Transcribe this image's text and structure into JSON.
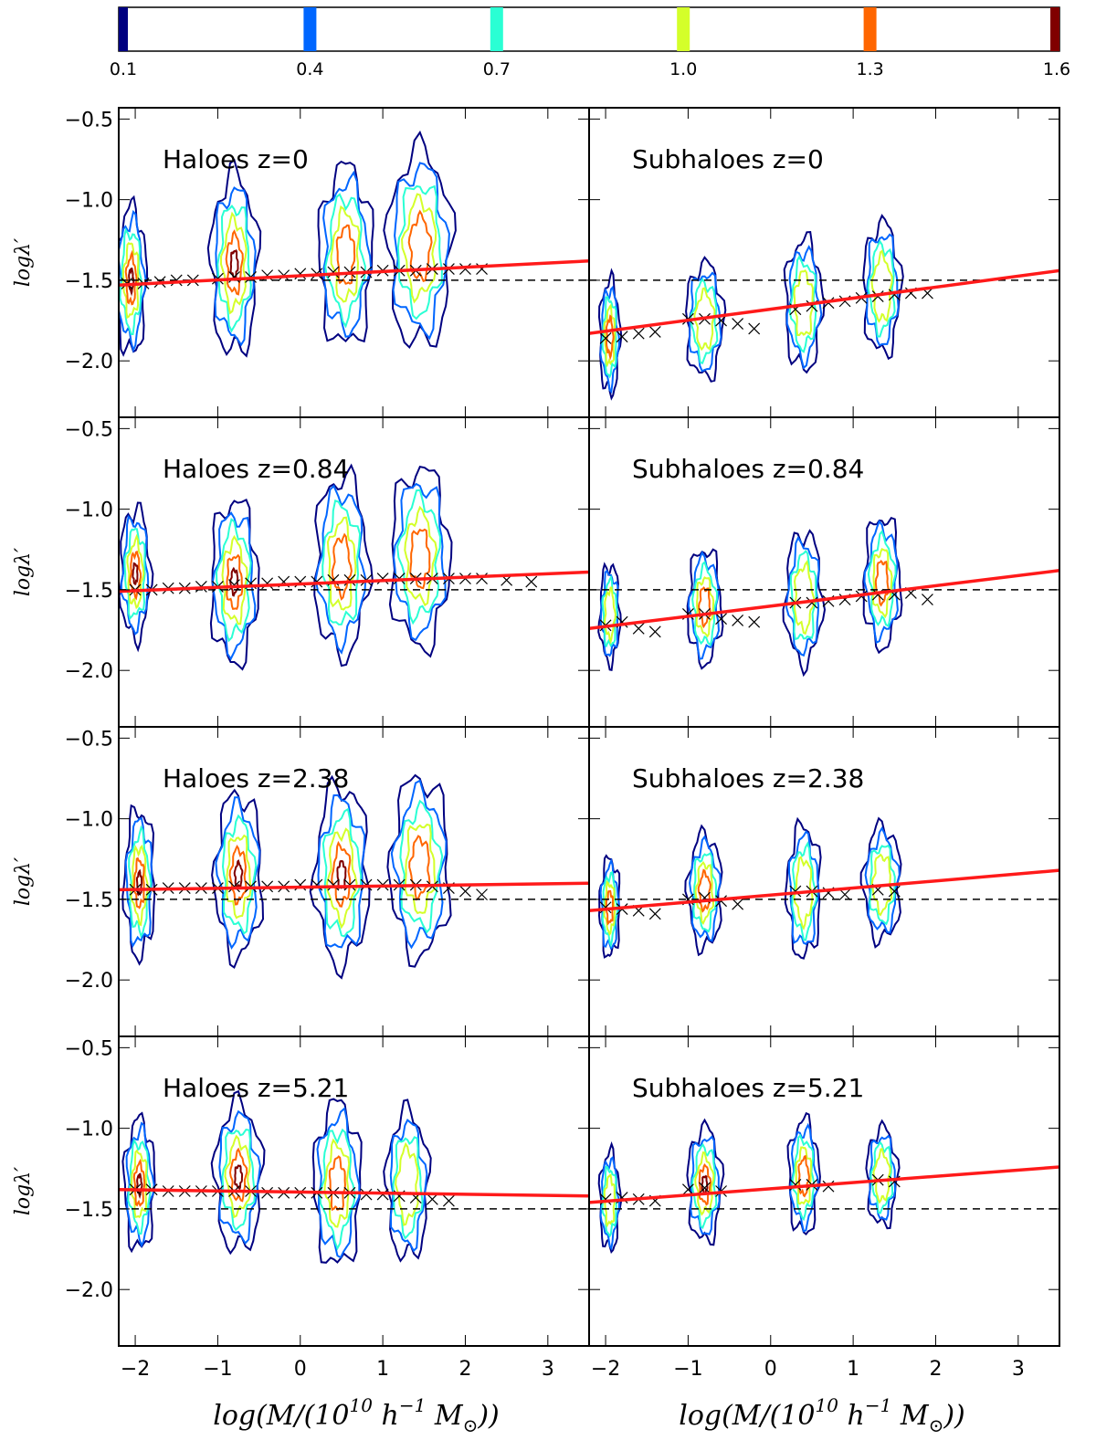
{
  "colorbar": {
    "ticks": [
      "0.1",
      "0.4",
      "0.7",
      "1.0",
      "1.3",
      "1.6"
    ],
    "tick_values": [
      0.1,
      0.4,
      0.7,
      1.0,
      1.3,
      1.6
    ],
    "range": [
      0.1,
      1.6
    ],
    "levels": [
      {
        "value": 0.1,
        "color": "#000080"
      },
      {
        "value": 0.4,
        "color": "#0066ff"
      },
      {
        "value": 0.7,
        "color": "#2affd4"
      },
      {
        "value": 1.0,
        "color": "#d4ff2a"
      },
      {
        "value": 1.3,
        "color": "#ff6600"
      },
      {
        "value": 1.6,
        "color": "#800000"
      }
    ]
  },
  "axes": {
    "xlabel": "log(M/(10^10 h^-1 M_⊙))",
    "xlabel_parts": {
      "a": "log(M/(10",
      "b": "10",
      "c": "h",
      "d": "−1",
      "e": "M",
      "f": "⊙",
      "g": "))"
    },
    "ylabel": "logλ′",
    "xlim": [
      -2.2,
      3.5
    ],
    "ylim": [
      -2.35,
      -0.43
    ],
    "xticks": [
      -2,
      -1,
      0,
      1,
      2,
      3
    ],
    "xtick_labels": [
      "−2",
      "−1",
      "0",
      "1",
      "2",
      "3"
    ],
    "yticks": [
      -0.5,
      -1.0,
      -1.5,
      -2.0
    ],
    "ytick_labels": [
      "−0.5",
      "−1.0",
      "−1.5",
      "−2.0"
    ],
    "reference_line_y": -1.5
  },
  "colors": {
    "fit_line": "#ff1a1a",
    "reference_line": "#000000",
    "markers": "#000000"
  },
  "chart_data": [
    {
      "type": "contour",
      "title": "Haloes z=0",
      "fit_line": {
        "x": [
          -2.2,
          3.5
        ],
        "y": [
          -1.53,
          -1.38
        ]
      },
      "median_markers": {
        "x": [
          -2.1,
          -1.9,
          -1.7,
          -1.5,
          -1.3,
          -1.0,
          -0.8,
          -0.6,
          -0.4,
          -0.2,
          0.0,
          0.2,
          0.4,
          0.6,
          0.8,
          1.0,
          1.2,
          1.4,
          1.6,
          1.8,
          2.0,
          2.2
        ],
        "y": [
          -1.52,
          -1.52,
          -1.51,
          -1.5,
          -1.5,
          -1.49,
          -1.48,
          -1.48,
          -1.47,
          -1.47,
          -1.46,
          -1.46,
          -1.45,
          -1.45,
          -1.45,
          -1.44,
          -1.44,
          -1.44,
          -1.43,
          -1.43,
          -1.43,
          -1.43
        ]
      },
      "clusters": [
        {
          "cx": -2.05,
          "cy": -1.5,
          "hw": 0.18,
          "hh": 0.45,
          "level": 1.6
        },
        {
          "cx": -0.8,
          "cy": -1.4,
          "hw": 0.28,
          "hh": 0.55,
          "level": 1.6
        },
        {
          "cx": 0.55,
          "cy": -1.35,
          "hw": 0.32,
          "hh": 0.55,
          "level": 1.3
        },
        {
          "cx": 1.45,
          "cy": -1.3,
          "hw": 0.38,
          "hh": 0.6,
          "level": 1.3
        }
      ]
    },
    {
      "type": "contour",
      "title": "Subhaloes z=0",
      "fit_line": {
        "x": [
          -2.2,
          3.5
        ],
        "y": [
          -1.83,
          -1.44
        ]
      },
      "median_markers": {
        "x": [
          -2.0,
          -1.8,
          -1.6,
          -1.4,
          -1.0,
          -0.8,
          -0.6,
          -0.4,
          -0.2,
          0.3,
          0.5,
          0.7,
          0.9,
          1.1,
          1.3,
          1.5,
          1.7,
          1.9
        ],
        "y": [
          -1.86,
          -1.85,
          -1.83,
          -1.82,
          -1.74,
          -1.74,
          -1.75,
          -1.77,
          -1.8,
          -1.68,
          -1.66,
          -1.64,
          -1.63,
          -1.61,
          -1.6,
          -1.59,
          -1.58,
          -1.58
        ]
      },
      "clusters": [
        {
          "cx": -1.95,
          "cy": -1.85,
          "hw": 0.12,
          "hh": 0.35,
          "level": 1.3
        },
        {
          "cx": -0.8,
          "cy": -1.75,
          "hw": 0.22,
          "hh": 0.35,
          "level": 1.0
        },
        {
          "cx": 0.4,
          "cy": -1.65,
          "hw": 0.22,
          "hh": 0.4,
          "level": 1.0
        },
        {
          "cx": 1.35,
          "cy": -1.55,
          "hw": 0.22,
          "hh": 0.4,
          "level": 1.0
        }
      ]
    },
    {
      "type": "contour",
      "title": "Haloes z=0.84",
      "fit_line": {
        "x": [
          -2.2,
          3.5
        ],
        "y": [
          -1.51,
          -1.39
        ]
      },
      "median_markers": {
        "x": [
          -2.0,
          -1.8,
          -1.6,
          -1.4,
          -1.2,
          -1.0,
          -0.8,
          -0.6,
          -0.4,
          -0.2,
          0.0,
          0.2,
          0.4,
          0.6,
          0.8,
          1.0,
          1.2,
          1.4,
          1.6,
          1.8,
          2.0,
          2.2,
          2.5,
          2.8
        ],
        "y": [
          -1.5,
          -1.5,
          -1.49,
          -1.49,
          -1.48,
          -1.48,
          -1.47,
          -1.46,
          -1.46,
          -1.45,
          -1.45,
          -1.45,
          -1.44,
          -1.44,
          -1.44,
          -1.43,
          -1.43,
          -1.43,
          -1.43,
          -1.43,
          -1.43,
          -1.43,
          -1.44,
          -1.45
        ]
      },
      "clusters": [
        {
          "cx": -2.0,
          "cy": -1.4,
          "hw": 0.18,
          "hh": 0.4,
          "level": 1.6
        },
        {
          "cx": -0.8,
          "cy": -1.45,
          "hw": 0.28,
          "hh": 0.5,
          "level": 1.6
        },
        {
          "cx": 0.5,
          "cy": -1.35,
          "hw": 0.32,
          "hh": 0.55,
          "level": 1.3
        },
        {
          "cx": 1.45,
          "cy": -1.3,
          "hw": 0.35,
          "hh": 0.55,
          "level": 1.3
        }
      ]
    },
    {
      "type": "contour",
      "title": "Subhaloes z=0.84",
      "fit_line": {
        "x": [
          -2.2,
          3.5
        ],
        "y": [
          -1.74,
          -1.38
        ]
      },
      "median_markers": {
        "x": [
          -2.0,
          -1.8,
          -1.6,
          -1.4,
          -1.0,
          -0.8,
          -0.6,
          -0.4,
          -0.2,
          0.3,
          0.5,
          0.7,
          0.9,
          1.1,
          1.3,
          1.5,
          1.7,
          1.9
        ],
        "y": [
          -1.72,
          -1.7,
          -1.74,
          -1.76,
          -1.65,
          -1.65,
          -1.68,
          -1.69,
          -1.7,
          -1.58,
          -1.58,
          -1.57,
          -1.56,
          -1.54,
          -1.53,
          -1.53,
          -1.52,
          -1.56
        ]
      },
      "clusters": [
        {
          "cx": -1.95,
          "cy": -1.65,
          "hw": 0.12,
          "hh": 0.3,
          "level": 1.0
        },
        {
          "cx": -0.8,
          "cy": -1.6,
          "hw": 0.2,
          "hh": 0.35,
          "level": 1.3
        },
        {
          "cx": 0.4,
          "cy": -1.55,
          "hw": 0.22,
          "hh": 0.4,
          "level": 1.0
        },
        {
          "cx": 1.35,
          "cy": -1.45,
          "hw": 0.22,
          "hh": 0.4,
          "level": 1.3
        }
      ]
    },
    {
      "type": "contour",
      "title": "Haloes z=2.38",
      "fit_line": {
        "x": [
          -2.2,
          3.5
        ],
        "y": [
          -1.44,
          -1.4
        ]
      },
      "median_markers": {
        "x": [
          -2.0,
          -1.8,
          -1.6,
          -1.4,
          -1.2,
          -1.0,
          -0.8,
          -0.6,
          -0.4,
          -0.2,
          0.0,
          0.2,
          0.4,
          0.6,
          0.8,
          1.0,
          1.2,
          1.4,
          1.6,
          1.8,
          2.0,
          2.2
        ],
        "y": [
          -1.44,
          -1.44,
          -1.43,
          -1.43,
          -1.43,
          -1.43,
          -1.42,
          -1.42,
          -1.42,
          -1.42,
          -1.41,
          -1.41,
          -1.41,
          -1.41,
          -1.41,
          -1.41,
          -1.41,
          -1.41,
          -1.42,
          -1.43,
          -1.45,
          -1.47
        ]
      },
      "clusters": [
        {
          "cx": -1.95,
          "cy": -1.4,
          "hw": 0.18,
          "hh": 0.45,
          "level": 1.6
        },
        {
          "cx": -0.75,
          "cy": -1.35,
          "hw": 0.28,
          "hh": 0.5,
          "level": 1.6
        },
        {
          "cx": 0.5,
          "cy": -1.35,
          "hw": 0.32,
          "hh": 0.55,
          "level": 1.6
        },
        {
          "cx": 1.45,
          "cy": -1.3,
          "hw": 0.35,
          "hh": 0.55,
          "level": 1.3
        }
      ]
    },
    {
      "type": "contour",
      "title": "Subhaloes z=2.38",
      "fit_line": {
        "x": [
          -2.2,
          3.5
        ],
        "y": [
          -1.57,
          -1.32
        ]
      },
      "median_markers": {
        "x": [
          -2.0,
          -1.8,
          -1.6,
          -1.4,
          -1.0,
          -0.8,
          -0.6,
          -0.4,
          0.3,
          0.5,
          0.7,
          0.9,
          1.3,
          1.5
        ],
        "y": [
          -1.55,
          -1.56,
          -1.57,
          -1.59,
          -1.5,
          -1.49,
          -1.51,
          -1.53,
          -1.45,
          -1.45,
          -1.46,
          -1.47,
          -1.44,
          -1.45
        ]
      },
      "clusters": [
        {
          "cx": -1.95,
          "cy": -1.55,
          "hw": 0.12,
          "hh": 0.3,
          "level": 1.3
        },
        {
          "cx": -0.8,
          "cy": -1.45,
          "hw": 0.2,
          "hh": 0.35,
          "level": 1.3
        },
        {
          "cx": 0.4,
          "cy": -1.45,
          "hw": 0.2,
          "hh": 0.4,
          "level": 1.0
        },
        {
          "cx": 1.35,
          "cy": -1.4,
          "hw": 0.22,
          "hh": 0.35,
          "level": 1.0
        }
      ]
    },
    {
      "type": "contour",
      "title": "Haloes z=5.21",
      "fit_line": {
        "x": [
          -2.2,
          3.5
        ],
        "y": [
          -1.38,
          -1.42
        ]
      },
      "median_markers": {
        "x": [
          -2.0,
          -1.8,
          -1.6,
          -1.4,
          -1.2,
          -1.0,
          -0.8,
          -0.6,
          -0.4,
          -0.2,
          0.0,
          0.2,
          0.4,
          0.6,
          0.8,
          1.0,
          1.2,
          1.4,
          1.6,
          1.8
        ],
        "y": [
          -1.38,
          -1.38,
          -1.39,
          -1.39,
          -1.39,
          -1.39,
          -1.39,
          -1.39,
          -1.4,
          -1.4,
          -1.4,
          -1.4,
          -1.4,
          -1.4,
          -1.41,
          -1.41,
          -1.42,
          -1.43,
          -1.44,
          -1.45
        ]
      },
      "clusters": [
        {
          "cx": -1.95,
          "cy": -1.35,
          "hw": 0.18,
          "hh": 0.4,
          "level": 1.6
        },
        {
          "cx": -0.75,
          "cy": -1.3,
          "hw": 0.28,
          "hh": 0.45,
          "level": 1.6
        },
        {
          "cx": 0.45,
          "cy": -1.35,
          "hw": 0.28,
          "hh": 0.5,
          "level": 1.3
        },
        {
          "cx": 1.3,
          "cy": -1.35,
          "hw": 0.25,
          "hh": 0.45,
          "level": 1.0
        }
      ]
    },
    {
      "type": "contour",
      "title": "Subhaloes z=5.21",
      "fit_line": {
        "x": [
          -2.2,
          3.5
        ],
        "y": [
          -1.46,
          -1.24
        ]
      },
      "median_markers": {
        "x": [
          -2.0,
          -1.8,
          -1.6,
          -1.4,
          -1.0,
          -0.8,
          -0.6,
          0.3,
          0.5,
          0.7,
          1.3,
          1.5
        ],
        "y": [
          -1.44,
          -1.43,
          -1.44,
          -1.45,
          -1.38,
          -1.37,
          -1.39,
          -1.35,
          -1.35,
          -1.36,
          -1.32,
          -1.33
        ]
      },
      "clusters": [
        {
          "cx": -1.95,
          "cy": -1.45,
          "hw": 0.12,
          "hh": 0.3,
          "level": 1.0
        },
        {
          "cx": -0.8,
          "cy": -1.35,
          "hw": 0.2,
          "hh": 0.35,
          "level": 1.6
        },
        {
          "cx": 0.4,
          "cy": -1.3,
          "hw": 0.18,
          "hh": 0.35,
          "level": 1.3
        },
        {
          "cx": 1.35,
          "cy": -1.3,
          "hw": 0.18,
          "hh": 0.3,
          "level": 1.0
        }
      ]
    }
  ]
}
